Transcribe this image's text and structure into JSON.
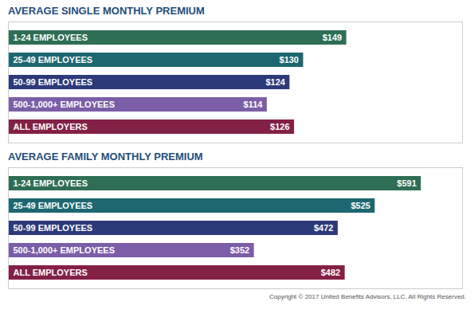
{
  "chart_data": [
    {
      "type": "bar",
      "orientation": "horizontal",
      "title": "AVERAGE SINGLE MONTHLY PREMIUM",
      "categories": [
        "1-24 EMPLOYEES",
        "25-49 EMPLOYEES",
        "50-99 EMPLOYEES",
        "500-1,000+ EMPLOYEES",
        "ALL EMPLOYERS"
      ],
      "values": [
        149,
        130,
        124,
        114,
        126
      ],
      "value_labels": [
        "$149",
        "$130",
        "$124",
        "$114",
        "$126"
      ],
      "data_labels": true,
      "colors": [
        "#2d6e54",
        "#1d6870",
        "#2d3a7a",
        "#7b5ea7",
        "#832045"
      ],
      "xlim": [
        0,
        200
      ],
      "tick_labels": false,
      "grid": false
    },
    {
      "type": "bar",
      "orientation": "horizontal",
      "title": "AVERAGE FAMILY MONTHLY PREMIUM",
      "categories": [
        "1-24 EMPLOYEES",
        "25-49 EMPLOYEES",
        "50-99 EMPLOYEES",
        "500-1,000+ EMPLOYEES",
        "ALL EMPLOYERS"
      ],
      "values": [
        591,
        525,
        472,
        352,
        482
      ],
      "value_labels": [
        "$591",
        "$525",
        "$472",
        "$352",
        "$482"
      ],
      "data_labels": true,
      "colors": [
        "#2d6e54",
        "#1d6870",
        "#2d3a7a",
        "#7b5ea7",
        "#832045"
      ],
      "xlim": [
        0,
        650
      ],
      "tick_labels": false,
      "grid": false,
      "annotations": [
        "Copyright © 2017 United Benefits Advisors, LLC. All Rights Reserved."
      ]
    }
  ]
}
